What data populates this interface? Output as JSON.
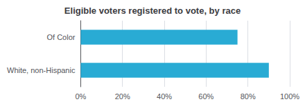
{
  "chart_data": {
    "type": "bar",
    "orientation": "horizontal",
    "title": "Eligible voters registered to vote, by race",
    "categories": [
      "White, non-Hispanic",
      "Of Color"
    ],
    "values": [
      0.9,
      0.75
    ],
    "color": "#29ABD4",
    "xlim": [
      0,
      1.0
    ],
    "xticks": [
      {
        "value": 0,
        "label": "0%"
      },
      {
        "value": 0.2,
        "label": "20%"
      },
      {
        "value": 0.4,
        "label": "40%"
      },
      {
        "value": 0.6,
        "label": "60%"
      },
      {
        "value": 0.8,
        "label": "80%"
      },
      {
        "value": 1.0,
        "label": "100%"
      }
    ],
    "grid": true
  }
}
